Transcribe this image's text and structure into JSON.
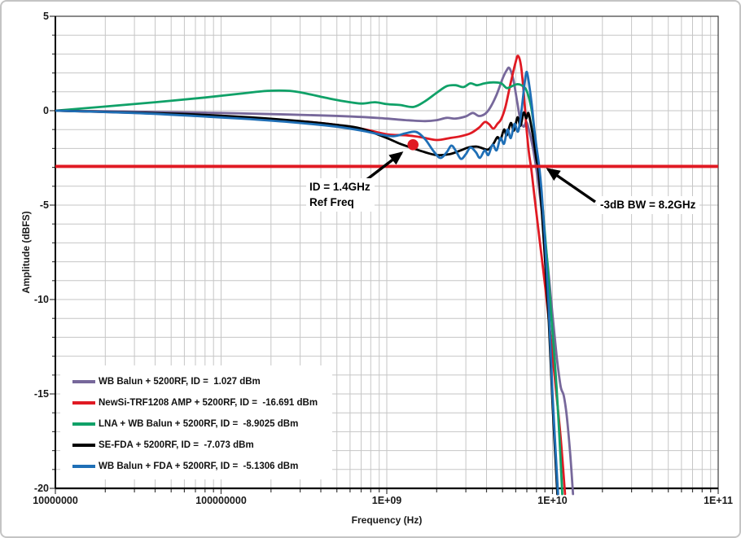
{
  "chart_data": {
    "type": "line",
    "title": "",
    "xlabel": "Frequency (Hz)",
    "ylabel": "Amplitude (dBFS)",
    "x_scale": "log",
    "xlim": [
      10000000.0,
      100000000000.0
    ],
    "ylim": [
      -20,
      5
    ],
    "grid": true,
    "legend_position": "bottom-left",
    "colors": {
      "grid": "#c6c6c6",
      "axis": "#3c3c3c",
      "accent_red": "#e01a23"
    },
    "x_ticks": [
      {
        "v": 10000000.0,
        "label": "10000000"
      },
      {
        "v": 100000000.0,
        "label": "100000000"
      },
      {
        "v": 1000000000.0,
        "label": "1E+09"
      },
      {
        "v": 10000000000.0,
        "label": "1E+10"
      },
      {
        "v": 100000000000.0,
        "label": "1E+11"
      }
    ],
    "y_ticks": [
      {
        "v": 5,
        "label": "5"
      },
      {
        "v": 0,
        "label": "0"
      },
      {
        "v": -5,
        "label": "-5"
      },
      {
        "v": -10,
        "label": "-10"
      },
      {
        "v": -15,
        "label": "-15"
      },
      {
        "v": -20,
        "label": "-20"
      }
    ],
    "ref_line": {
      "db": -2.95,
      "color": "#e01a23"
    },
    "ref_point": {
      "freq": 1440000000.0,
      "db": -1.8,
      "color": "#e01a23"
    },
    "annotations": {
      "ref_freq": {
        "line1": "ID = 1.4GHz",
        "line2": "Ref Freq"
      },
      "bandwidth": {
        "text": "-3dB BW = 8.2GHz"
      }
    },
    "series": [
      {
        "name": "WB Balun + 5200RF, ID =  1.027 dBm",
        "color": "#77689b",
        "points": [
          [
            10000000.0,
            0
          ],
          [
            20000000.0,
            -0.03
          ],
          [
            50000000.0,
            -0.08
          ],
          [
            100000000.0,
            -0.12
          ],
          [
            200000000.0,
            -0.18
          ],
          [
            400000000.0,
            -0.25
          ],
          [
            700000000.0,
            -0.33
          ],
          [
            1000000000.0,
            -0.42
          ],
          [
            1300000000.0,
            -0.5
          ],
          [
            1700000000.0,
            -0.55
          ],
          [
            2000000000.0,
            -0.5
          ],
          [
            2300000000.0,
            -0.38
          ],
          [
            2600000000.0,
            -0.42
          ],
          [
            3000000000.0,
            -0.3
          ],
          [
            3300000000.0,
            -0.12
          ],
          [
            3600000000.0,
            -0.28
          ],
          [
            3900000000.0,
            -0.18
          ],
          [
            4200000000.0,
            0.15
          ],
          [
            4600000000.0,
            0.85
          ],
          [
            5000000000.0,
            1.7
          ],
          [
            5300000000.0,
            2.15
          ],
          [
            5500000000.0,
            2.25
          ],
          [
            5800000000.0,
            1.65
          ],
          [
            6100000000.0,
            0.55
          ],
          [
            6400000000.0,
            -0.5
          ],
          [
            6700000000.0,
            -0.85
          ],
          [
            6950000000.0,
            -0.6
          ],
          [
            7200000000.0,
            -1.0
          ],
          [
            7700000000.0,
            -2.2
          ],
          [
            8200000000.0,
            -3.8
          ],
          [
            8800000000.0,
            -6.0
          ],
          [
            9400000000.0,
            -8.3
          ],
          [
            10000000000.0,
            -10.8
          ],
          [
            10600000000.0,
            -13.0
          ],
          [
            11200000000.0,
            -14.6
          ],
          [
            11700000000.0,
            -15.1
          ],
          [
            12200000000.0,
            -16.2
          ],
          [
            12800000000.0,
            -18.2
          ],
          [
            13300000000.0,
            -20.3
          ]
        ]
      },
      {
        "name": "NewSi-TRF1208 AMP + 5200RF, ID =  -16.691 dBm",
        "color": "#e01a23",
        "points": [
          [
            10000000.0,
            0
          ],
          [
            20000000.0,
            -0.07
          ],
          [
            50000000.0,
            -0.18
          ],
          [
            100000000.0,
            -0.3
          ],
          [
            200000000.0,
            -0.45
          ],
          [
            400000000.0,
            -0.65
          ],
          [
            700000000.0,
            -0.95
          ],
          [
            1000000000.0,
            -1.25
          ],
          [
            1300000000.0,
            -1.3
          ],
          [
            1600000000.0,
            -1.4
          ],
          [
            2000000000.0,
            -1.55
          ],
          [
            2400000000.0,
            -1.45
          ],
          [
            2800000000.0,
            -1.35
          ],
          [
            3200000000.0,
            -1.2
          ],
          [
            3600000000.0,
            -0.9
          ],
          [
            3900000000.0,
            -0.6
          ],
          [
            4150000000.0,
            -0.72
          ],
          [
            4400000000.0,
            -0.95
          ],
          [
            4650000000.0,
            -0.7
          ],
          [
            4900000000.0,
            -0.45
          ],
          [
            5200000000.0,
            0.2
          ],
          [
            5600000000.0,
            1.5
          ],
          [
            6000000000.0,
            2.6
          ],
          [
            6200000000.0,
            2.9
          ],
          [
            6450000000.0,
            2.4
          ],
          [
            6700000000.0,
            1.0
          ],
          [
            6950000000.0,
            -0.8
          ],
          [
            7200000000.0,
            -2.2
          ],
          [
            7450000000.0,
            -3.1
          ],
          [
            7800000000.0,
            -4.6
          ],
          [
            8300000000.0,
            -6.6
          ],
          [
            9000000000.0,
            -9.2
          ],
          [
            9700000000.0,
            -11.8
          ],
          [
            10500000000.0,
            -14.8
          ],
          [
            11200000000.0,
            -17.3
          ],
          [
            11900000000.0,
            -20.3
          ]
        ]
      },
      {
        "name": "LNA + WB Balun + 5200RF, ID =  -8.9025 dBm",
        "color": "#10a168",
        "points": [
          [
            10000000.0,
            0
          ],
          [
            20000000.0,
            0.22
          ],
          [
            40000000.0,
            0.45
          ],
          [
            80000000.0,
            0.7
          ],
          [
            130000000.0,
            0.9
          ],
          [
            190000000.0,
            1.05
          ],
          [
            260000000.0,
            1.05
          ],
          [
            330000000.0,
            0.9
          ],
          [
            420000000.0,
            0.7
          ],
          [
            550000000.0,
            0.5
          ],
          [
            700000000.0,
            0.38
          ],
          [
            850000000.0,
            0.45
          ],
          [
            1000000000.0,
            0.35
          ],
          [
            1200000000.0,
            0.3
          ],
          [
            1450000000.0,
            0.2
          ],
          [
            1700000000.0,
            0.5
          ],
          [
            2000000000.0,
            0.95
          ],
          [
            2300000000.0,
            1.3
          ],
          [
            2600000000.0,
            1.35
          ],
          [
            2900000000.0,
            1.25
          ],
          [
            3200000000.0,
            1.45
          ],
          [
            3500000000.0,
            1.35
          ],
          [
            3900000000.0,
            1.45
          ],
          [
            4400000000.0,
            1.5
          ],
          [
            4900000000.0,
            1.45
          ],
          [
            5300000000.0,
            1.2
          ],
          [
            5700000000.0,
            1.3
          ],
          [
            6100000000.0,
            1.4
          ],
          [
            6500000000.0,
            1.35
          ],
          [
            6900000000.0,
            1.15
          ],
          [
            7200000000.0,
            0.7
          ],
          [
            7500000000.0,
            0.0
          ],
          [
            7800000000.0,
            -1.2
          ],
          [
            8100000000.0,
            -2.4
          ],
          [
            8350000000.0,
            -3.4
          ],
          [
            8800000000.0,
            -5.5
          ],
          [
            9300000000.0,
            -8.0
          ],
          [
            9900000000.0,
            -11.2
          ],
          [
            10500000000.0,
            -14.2
          ],
          [
            11000000000.0,
            -17.2
          ],
          [
            11450000000.0,
            -20.3
          ]
        ]
      },
      {
        "name": "SE-FDA + 5200RF, ID =  -7.073 dBm",
        "color": "#000000",
        "points": [
          [
            10000000.0,
            0
          ],
          [
            30000000.0,
            -0.1
          ],
          [
            70000000.0,
            -0.2
          ],
          [
            150000000.0,
            -0.35
          ],
          [
            300000000.0,
            -0.55
          ],
          [
            500000000.0,
            -0.75
          ],
          [
            700000000.0,
            -0.95
          ],
          [
            1000000000.0,
            -1.45
          ],
          [
            1200000000.0,
            -1.75
          ],
          [
            1450000000.0,
            -2.0
          ],
          [
            1700000000.0,
            -2.2
          ],
          [
            2000000000.0,
            -2.35
          ],
          [
            2400000000.0,
            -2.3
          ],
          [
            2800000000.0,
            -2.1
          ],
          [
            3100000000.0,
            -1.95
          ],
          [
            3500000000.0,
            -1.9
          ],
          [
            3800000000.0,
            -2.0
          ],
          [
            4100000000.0,
            -2.05
          ],
          [
            4400000000.0,
            -1.75
          ],
          [
            4650000000.0,
            -1.4
          ],
          [
            4850000000.0,
            -1.55
          ],
          [
            5100000000.0,
            -1.0
          ],
          [
            5300000000.0,
            -1.3
          ],
          [
            5600000000.0,
            -0.65
          ],
          [
            5850000000.0,
            -1.05
          ],
          [
            6150000000.0,
            -0.35
          ],
          [
            6400000000.0,
            -0.8
          ],
          [
            6700000000.0,
            -0.1
          ],
          [
            6950000000.0,
            -0.4
          ],
          [
            7150000000.0,
            -0.12
          ],
          [
            7400000000.0,
            -0.7
          ],
          [
            7700000000.0,
            -1.6
          ],
          [
            8000000000.0,
            -2.6
          ],
          [
            8200000000.0,
            -3.1
          ],
          [
            8600000000.0,
            -5.2
          ],
          [
            9000000000.0,
            -7.8
          ],
          [
            9500000000.0,
            -11.2
          ],
          [
            10000000000.0,
            -15.5
          ],
          [
            10700000000.0,
            -20.3
          ]
        ]
      },
      {
        "name": "WB Balun + FDA + 5200RF, ID =  -5.1306 dBm",
        "color": "#1f6fb6",
        "points": [
          [
            10000000.0,
            0
          ],
          [
            30000000.0,
            -0.12
          ],
          [
            70000000.0,
            -0.28
          ],
          [
            150000000.0,
            -0.45
          ],
          [
            300000000.0,
            -0.65
          ],
          [
            500000000.0,
            -0.85
          ],
          [
            700000000.0,
            -1.05
          ],
          [
            900000000.0,
            -1.25
          ],
          [
            1100000000.0,
            -1.35
          ],
          [
            1300000000.0,
            -1.2
          ],
          [
            1500000000.0,
            -1.12
          ],
          [
            1700000000.0,
            -1.5
          ],
          [
            1900000000.0,
            -2.1
          ],
          [
            2100000000.0,
            -2.5
          ],
          [
            2300000000.0,
            -2.2
          ],
          [
            2450000000.0,
            -1.85
          ],
          [
            2600000000.0,
            -2.1
          ],
          [
            2800000000.0,
            -2.55
          ],
          [
            3000000000.0,
            -2.3
          ],
          [
            3200000000.0,
            -1.95
          ],
          [
            3450000000.0,
            -2.2
          ],
          [
            3650000000.0,
            -2.5
          ],
          [
            3900000000.0,
            -2.1
          ],
          [
            4100000000.0,
            -2.35
          ],
          [
            4350000000.0,
            -1.8
          ],
          [
            4600000000.0,
            -2.1
          ],
          [
            4850000000.0,
            -1.45
          ],
          [
            5100000000.0,
            -1.75
          ],
          [
            5350000000.0,
            -1.0
          ],
          [
            5600000000.0,
            -1.45
          ],
          [
            5900000000.0,
            -0.7
          ],
          [
            6200000000.0,
            -1.1
          ],
          [
            6500000000.0,
            0.0
          ],
          [
            6800000000.0,
            1.5
          ],
          [
            7000000000.0,
            2.05
          ],
          [
            7250000000.0,
            1.3
          ],
          [
            7500000000.0,
            0.3
          ],
          [
            7750000000.0,
            -0.9
          ],
          [
            8000000000.0,
            -1.9
          ],
          [
            8300000000.0,
            -2.9
          ],
          [
            8600000000.0,
            -4.3
          ],
          [
            9000000000.0,
            -6.8
          ],
          [
            9500000000.0,
            -10.5
          ],
          [
            10000000000.0,
            -15.0
          ],
          [
            10800000000.0,
            -20.3
          ]
        ]
      }
    ]
  }
}
